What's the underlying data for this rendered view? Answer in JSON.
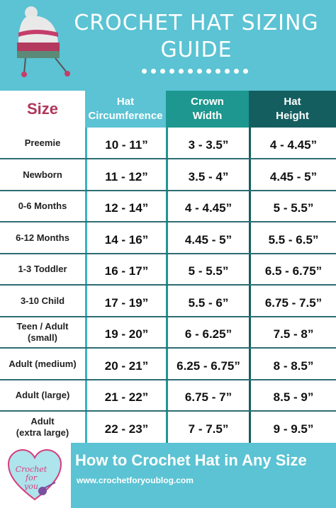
{
  "header": {
    "title_line1": "CROCHET HAT SIZING",
    "title_line2": "GUIDE",
    "dot_count": 12
  },
  "table": {
    "size_label": "Size",
    "columns": [
      {
        "line1": "Hat",
        "line2": "Circumference"
      },
      {
        "line1": "Crown",
        "line2": "Width"
      },
      {
        "line1": "Hat",
        "line2": "Height"
      }
    ],
    "rows": [
      {
        "name1": "Preemie",
        "name2": "",
        "circumference": "10 - 11”",
        "crown": "3 - 3.5”",
        "height": "4 - 4.45”"
      },
      {
        "name1": "Newborn",
        "name2": "",
        "circumference": "11 - 12”",
        "crown": "3.5 - 4”",
        "height": "4.45 - 5”"
      },
      {
        "name1": "0-6 Months",
        "name2": "",
        "circumference": "12 - 14”",
        "crown": "4 - 4.45”",
        "height": "5 - 5.5”"
      },
      {
        "name1": "6-12 Months",
        "name2": "",
        "circumference": "14 - 16”",
        "crown": "4.45 - 5”",
        "height": "5.5 - 6.5”"
      },
      {
        "name1": "1-3 Toddler",
        "name2": "",
        "circumference": "16 - 17”",
        "crown": "5 - 5.5”",
        "height": "6.5 - 6.75”"
      },
      {
        "name1": "3-10 Child",
        "name2": "",
        "circumference": "17 - 19”",
        "crown": "5.5 - 6”",
        "height": "6.75 - 7.5”"
      },
      {
        "name1": "Teen / Adult",
        "name2": "(small)",
        "circumference": "19 - 20”",
        "crown": "6 - 6.25”",
        "height": "7.5 - 8”"
      },
      {
        "name1": "Adult (medium)",
        "name2": "",
        "circumference": "20 - 21”",
        "crown": "6.25 - 6.75”",
        "height": "8 - 8.5”"
      },
      {
        "name1": "Adult (large)",
        "name2": "",
        "circumference": "21 - 22”",
        "crown": "6.75 - 7”",
        "height": "8.5 - 9”"
      },
      {
        "name1": "Adult",
        "name2": "(extra large)",
        "circumference": "22 - 23”",
        "crown": "7 - 7.5”",
        "height": "9 - 9.5”"
      }
    ]
  },
  "footer": {
    "logo_line1": "Crochet for",
    "logo_line2": "you",
    "title": "How to Crochet Hat in Any Size",
    "url": "www.crochetforyoublog.com"
  },
  "colors": {
    "background": "#5bc3d3",
    "crown_header": "#1d978f",
    "height_header": "#155e60",
    "size_label": "#b0365a"
  }
}
